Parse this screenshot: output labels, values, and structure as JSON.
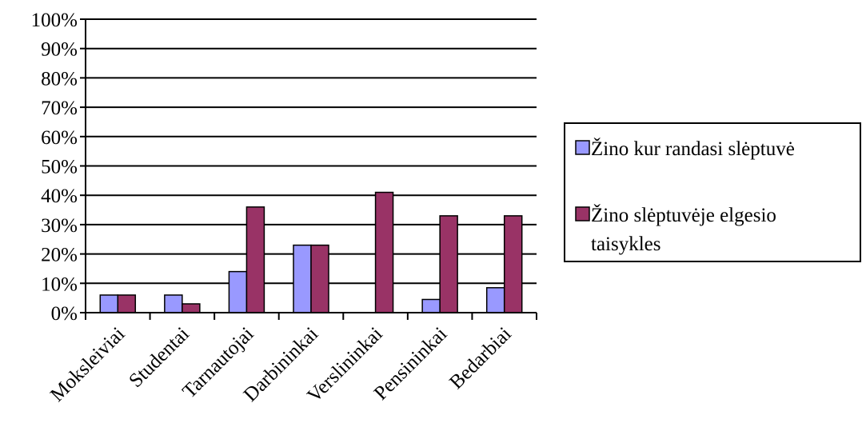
{
  "chart_data": {
    "type": "bar",
    "categories": [
      "Moksleiviai",
      "Studentai",
      "Tarnautojai",
      "Darbininkai",
      "Verslininkai",
      "Pensininkai",
      "Bedarbiai"
    ],
    "series": [
      {
        "name": "Žino kur randasi slėptuvė",
        "values": [
          6,
          6,
          14,
          23,
          0,
          4.5,
          8.5
        ],
        "color": "#9999FF"
      },
      {
        "name": "Žino slėptuvėje elgesio taisykles",
        "values": [
          6,
          3,
          36,
          23,
          41,
          33,
          33
        ],
        "color": "#993366"
      }
    ],
    "yticks": [
      "0%",
      "10%",
      "20%",
      "30%",
      "40%",
      "50%",
      "60%",
      "70%",
      "80%",
      "90%",
      "100%"
    ],
    "ylim": [
      0,
      100
    ],
    "grid": true,
    "legend_position": "right",
    "title": "",
    "xlabel": "",
    "ylabel": ""
  },
  "legend": {
    "item1_label": "Žino kur randasi slėptuvė",
    "item2_line1": "Žino slėptuvėje elgesio",
    "item2_line2": "taisykles"
  }
}
